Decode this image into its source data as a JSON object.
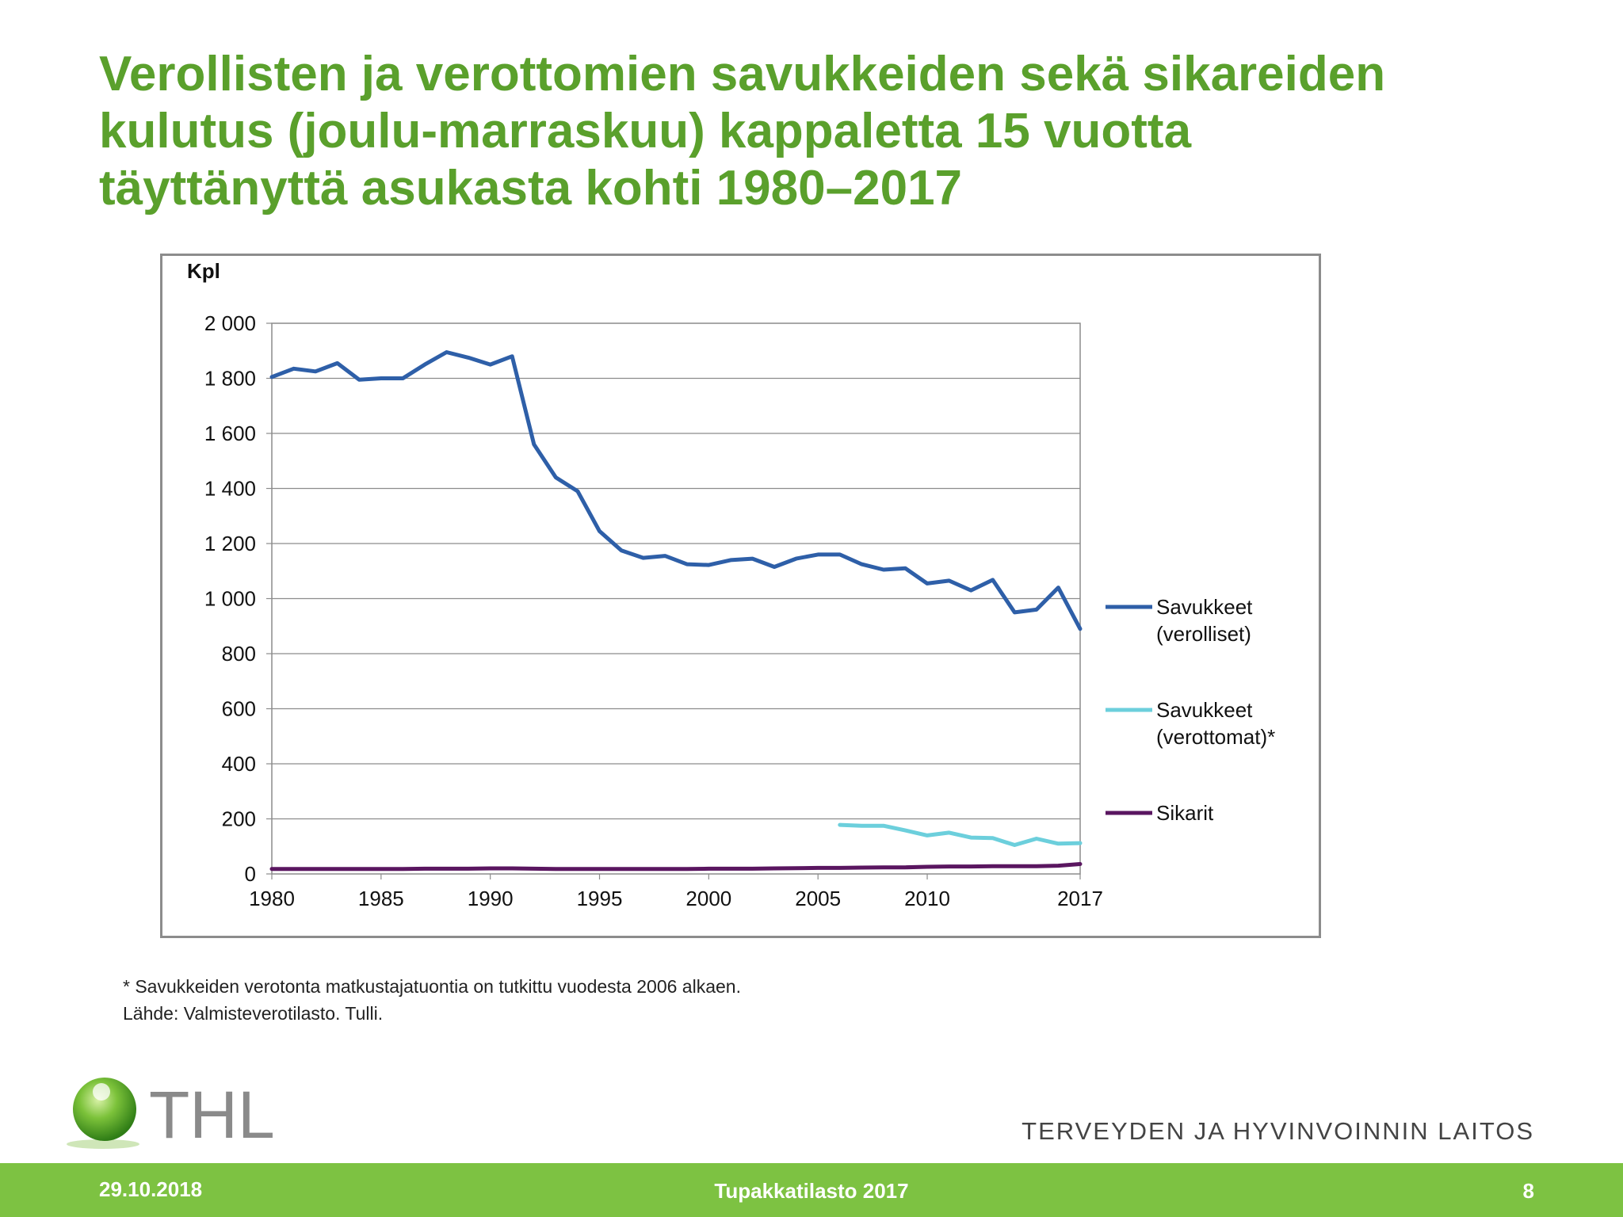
{
  "slide": {
    "title_lines": [
      "Verollisten ja verottomien savukkeiden sekä sikareiden",
      "kulutus (joulu-marraskuu) kappaletta 15 vuotta",
      "täyttänyttä asukasta kohti 1980–2017"
    ],
    "footnotes": [
      "* Savukkeiden verotonta matkustajatuontia on tutkittu vuodesta 2006 alkaen.",
      "Lähde: Valmisteverotilasto. Tulli."
    ]
  },
  "branding": {
    "logo_text": "THL",
    "org_name": "TERVEYDEN JA HYVINVOINNIN LAITOS"
  },
  "footer": {
    "date": "29.10.2018",
    "center": "Tupakkatilasto 2017",
    "page": "8"
  },
  "chart_data": {
    "type": "line",
    "ylabel": "Kpl",
    "ylim": [
      0,
      2000
    ],
    "xlim": [
      1980,
      2017
    ],
    "yticks": [
      0,
      200,
      400,
      600,
      800,
      1000,
      1200,
      1400,
      1600,
      1800,
      2000
    ],
    "ytick_labels": [
      "0",
      "200",
      "400",
      "600",
      "800",
      "1 000",
      "1 200",
      "1 400",
      "1 600",
      "1 800",
      "2 000"
    ],
    "xticks": [
      1980,
      1985,
      1990,
      1995,
      2000,
      2005,
      2010,
      2017
    ],
    "xtick_labels": [
      "1980",
      "1985",
      "1990",
      "1995",
      "2000",
      "2005",
      "2010",
      "2017"
    ],
    "grid": "horizontal",
    "legend_position": "right",
    "series": [
      {
        "name": "Savukkeet (verolliset)",
        "legend_lines": [
          "Savukkeet",
          "(verolliset)"
        ],
        "color": "#2e5fa8",
        "x": [
          1980,
          1981,
          1982,
          1983,
          1984,
          1985,
          1986,
          1987,
          1988,
          1989,
          1990,
          1991,
          1992,
          1993,
          1994,
          1995,
          1996,
          1997,
          1998,
          1999,
          2000,
          2001,
          2002,
          2003,
          2004,
          2005,
          2006,
          2007,
          2008,
          2009,
          2010,
          2011,
          2012,
          2013,
          2014,
          2015,
          2016,
          2017
        ],
        "y": [
          1805,
          1835,
          1825,
          1855,
          1795,
          1800,
          1800,
          1850,
          1895,
          1875,
          1850,
          1880,
          1560,
          1440,
          1390,
          1245,
          1175,
          1148,
          1155,
          1125,
          1122,
          1140,
          1145,
          1115,
          1145,
          1160,
          1160,
          1125,
          1105,
          1110,
          1055,
          1065,
          1030,
          1068,
          950,
          960,
          1040,
          890
        ]
      },
      {
        "name": "Savukkeet (verottomat)*",
        "legend_lines": [
          "Savukkeet",
          "(verottomat)*"
        ],
        "color": "#6ccfdc",
        "x": [
          2006,
          2007,
          2008,
          2009,
          2010,
          2011,
          2012,
          2013,
          2014,
          2015,
          2016,
          2017
        ],
        "y": [
          178,
          175,
          175,
          158,
          140,
          150,
          132,
          130,
          105,
          128,
          110,
          112
        ]
      },
      {
        "name": "Sikarit",
        "legend_lines": [
          "Sikarit"
        ],
        "color": "#5a1660",
        "x": [
          1980,
          1981,
          1982,
          1983,
          1984,
          1985,
          1986,
          1987,
          1988,
          1989,
          1990,
          1991,
          1992,
          1993,
          1994,
          1995,
          1996,
          1997,
          1998,
          1999,
          2000,
          2001,
          2002,
          2003,
          2004,
          2005,
          2006,
          2007,
          2008,
          2009,
          2010,
          2011,
          2012,
          2013,
          2014,
          2015,
          2016,
          2017
        ],
        "y": [
          18,
          18,
          18,
          18,
          18,
          18,
          18,
          19,
          19,
          19,
          20,
          20,
          19,
          18,
          18,
          18,
          18,
          18,
          18,
          18,
          19,
          19,
          19,
          20,
          21,
          22,
          22,
          23,
          24,
          24,
          26,
          27,
          27,
          28,
          28,
          28,
          30,
          36
        ]
      }
    ]
  }
}
